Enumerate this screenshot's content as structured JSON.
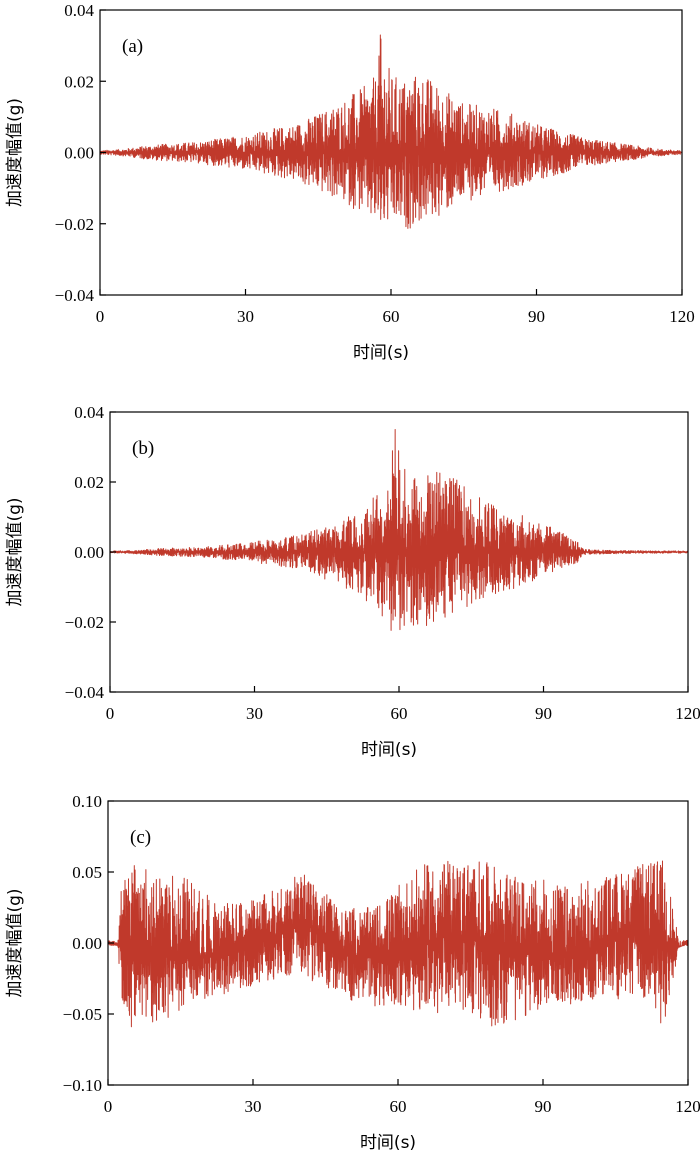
{
  "trace_color": "#c0392b",
  "chart_data": [
    {
      "type": "line",
      "panel_label": "(a)",
      "xlabel": "时间(s)",
      "ylabel": "加速度幅值(g)",
      "xlim": [
        0,
        120
      ],
      "ylim": [
        -0.04,
        0.04
      ],
      "x_ticks": [
        0,
        30,
        60,
        90,
        120
      ],
      "y_ticks": [
        -0.04,
        -0.02,
        0.0,
        0.02,
        0.04
      ],
      "x_tick_labels": [
        "0",
        "30",
        "60",
        "90",
        "120"
      ],
      "y_tick_labels": [
        "−0.04",
        "−0.02",
        "0.00",
        "0.02",
        "0.04"
      ],
      "envelope": {
        "x": [
          0,
          5,
          10,
          20,
          30,
          40,
          45,
          50,
          55,
          57,
          58,
          60,
          63,
          66,
          70,
          75,
          80,
          85,
          90,
          95,
          100,
          105,
          110,
          115,
          120
        ],
        "max": [
          0.0005,
          0.001,
          0.002,
          0.003,
          0.005,
          0.008,
          0.011,
          0.015,
          0.019,
          0.022,
          0.033,
          0.022,
          0.021,
          0.023,
          0.019,
          0.014,
          0.013,
          0.011,
          0.008,
          0.006,
          0.004,
          0.003,
          0.002,
          0.001,
          0.0005
        ],
        "min": [
          -0.0005,
          -0.001,
          -0.002,
          -0.003,
          -0.005,
          -0.008,
          -0.011,
          -0.014,
          -0.018,
          -0.022,
          -0.022,
          -0.021,
          -0.022,
          -0.02,
          -0.018,
          -0.014,
          -0.012,
          -0.01,
          -0.008,
          -0.006,
          -0.004,
          -0.003,
          -0.002,
          -0.001,
          -0.0005
        ]
      },
      "peak": {
        "x": 57.8,
        "y": 0.033
      }
    },
    {
      "type": "line",
      "panel_label": "(b)",
      "xlabel": "时间(s)",
      "ylabel": "加速度幅值(g)",
      "xlim": [
        0,
        120
      ],
      "ylim": [
        -0.04,
        0.04
      ],
      "x_ticks": [
        0,
        30,
        60,
        90,
        120
      ],
      "y_ticks": [
        -0.04,
        -0.02,
        0.0,
        0.02,
        0.04
      ],
      "x_tick_labels": [
        "0",
        "30",
        "60",
        "90",
        "120"
      ],
      "y_tick_labels": [
        "−0.04",
        "−0.02",
        "0.00",
        "0.02",
        "0.04"
      ],
      "envelope": {
        "x": [
          0,
          5,
          10,
          20,
          30,
          40,
          45,
          50,
          55,
          58,
          59,
          62,
          65,
          70,
          75,
          80,
          85,
          90,
          95,
          97,
          98,
          100,
          110,
          120
        ],
        "max": [
          0.0003,
          0.0005,
          0.001,
          0.0015,
          0.003,
          0.005,
          0.008,
          0.011,
          0.016,
          0.02,
          0.035,
          0.021,
          0.022,
          0.024,
          0.017,
          0.013,
          0.011,
          0.008,
          0.005,
          0.003,
          0.001,
          0.0006,
          0.0004,
          0.0003
        ],
        "min": [
          -0.0003,
          -0.0005,
          -0.001,
          -0.0015,
          -0.003,
          -0.005,
          -0.008,
          -0.011,
          -0.016,
          -0.021,
          -0.025,
          -0.021,
          -0.022,
          -0.02,
          -0.016,
          -0.012,
          -0.01,
          -0.007,
          -0.004,
          -0.003,
          -0.001,
          -0.0006,
          -0.0004,
          -0.0003
        ]
      },
      "peak": {
        "x": 59.2,
        "y": 0.035
      }
    },
    {
      "type": "line",
      "panel_label": "(c)",
      "xlabel": "时间(s)",
      "ylabel": "加速度幅值(g)",
      "xlim": [
        0,
        120
      ],
      "ylim": [
        -0.1,
        0.1
      ],
      "x_ticks": [
        0,
        30,
        60,
        90,
        120
      ],
      "y_ticks": [
        -0.1,
        -0.05,
        0.0,
        0.05,
        0.1
      ],
      "x_tick_labels": [
        "0",
        "30",
        "60",
        "90",
        "120"
      ],
      "y_tick_labels": [
        "−0.10",
        "−0.05",
        "0.00",
        "0.05",
        "0.10"
      ],
      "envelope": {
        "x": [
          0,
          2,
          3,
          5,
          10,
          15,
          20,
          25,
          30,
          35,
          40,
          43,
          47,
          50,
          55,
          60,
          65,
          70,
          75,
          80,
          85,
          90,
          95,
          100,
          105,
          110,
          115,
          117,
          118,
          120
        ],
        "max": [
          0.002,
          0.002,
          0.05,
          0.055,
          0.05,
          0.05,
          0.035,
          0.03,
          0.03,
          0.04,
          0.05,
          0.04,
          0.03,
          0.025,
          0.025,
          0.04,
          0.055,
          0.058,
          0.06,
          0.055,
          0.045,
          0.045,
          0.04,
          0.045,
          0.05,
          0.055,
          0.06,
          0.025,
          0.002,
          0.002
        ],
        "min": [
          -0.002,
          -0.002,
          -0.05,
          -0.06,
          -0.055,
          -0.05,
          -0.04,
          -0.035,
          -0.03,
          -0.025,
          -0.02,
          -0.03,
          -0.035,
          -0.04,
          -0.045,
          -0.045,
          -0.05,
          -0.05,
          -0.05,
          -0.06,
          -0.055,
          -0.045,
          -0.045,
          -0.04,
          -0.04,
          -0.04,
          -0.06,
          -0.03,
          -0.002,
          -0.002
        ]
      },
      "center": {
        "x": [
          0,
          10,
          20,
          30,
          41,
          50,
          60,
          70,
          80,
          90,
          100,
          108,
          117,
          120
        ],
        "y": [
          0,
          -0.008,
          -0.01,
          -0.002,
          0.015,
          -0.01,
          -0.008,
          0.005,
          0.0,
          -0.01,
          -0.005,
          0.01,
          -0.005,
          0
        ]
      }
    }
  ]
}
